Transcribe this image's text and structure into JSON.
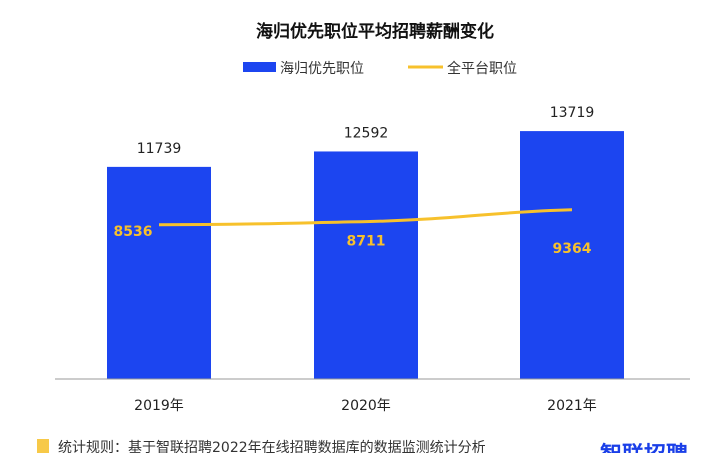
{
  "chart_data": {
    "type": "bar",
    "title": "海归优先职位平均招聘薪酬变化",
    "categories": [
      "2019年",
      "2020年",
      "2021年"
    ],
    "series": [
      {
        "name": "海归优先职位",
        "type": "bar",
        "color": "#1c45f0",
        "values": [
          11739,
          12592,
          13719
        ]
      },
      {
        "name": "全平台职位",
        "type": "line",
        "color": "#f7c12c",
        "values": [
          8536,
          8711,
          9364
        ]
      }
    ],
    "ylim": [
      0,
      21000
    ],
    "grid": false,
    "legend": "top-center",
    "xlabel": "",
    "ylabel": ""
  },
  "footnote": "统计规则：基于智联招聘2022年在线招聘数据库的数据监测统计分析",
  "footnote_color": "#f7c948",
  "logo_text": "智联招聘"
}
